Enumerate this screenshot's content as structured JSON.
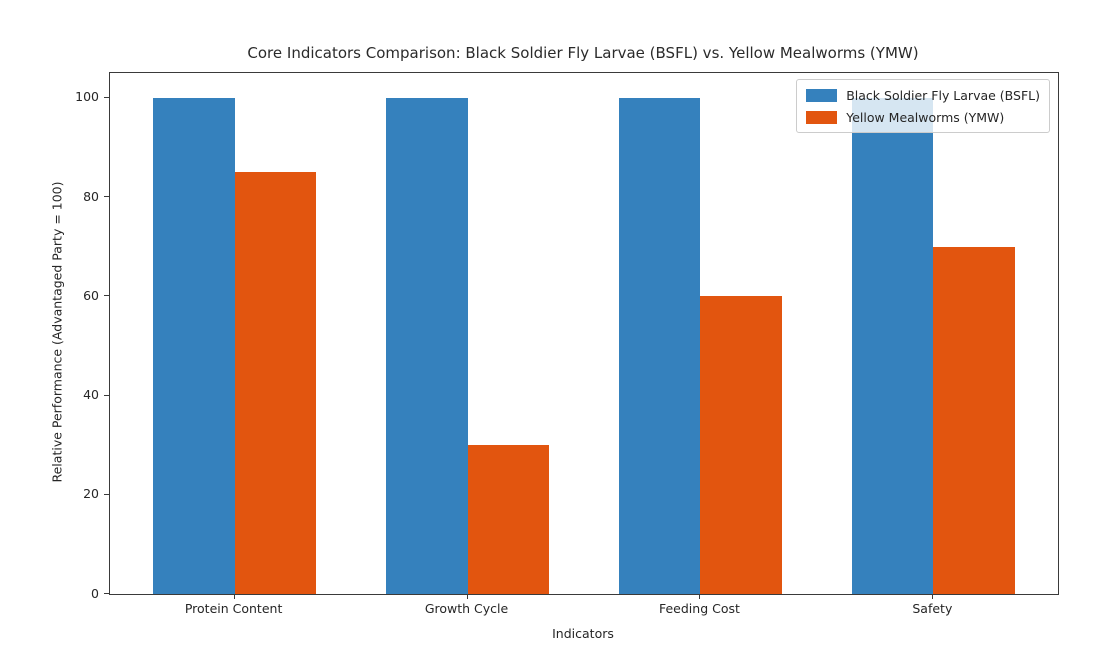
{
  "chart_data": {
    "type": "bar",
    "title": "Core Indicators Comparison: Black Soldier Fly Larvae (BSFL) vs. Yellow Mealworms (YMW)",
    "xlabel": "Indicators",
    "ylabel": "Relative Performance (Advantaged Party = 100)",
    "categories": [
      "Protein Content",
      "Growth Cycle",
      "Feeding Cost",
      "Safety"
    ],
    "series": [
      {
        "name": "Black Soldier Fly Larvae (BSFL)",
        "color": "#3581bd",
        "values": [
          100,
          100,
          100,
          100
        ]
      },
      {
        "name": "Yellow Mealworms (YMW)",
        "color": "#e2550f",
        "values": [
          85,
          30,
          60,
          70
        ]
      }
    ],
    "ylim": [
      0,
      105
    ],
    "yticks": [
      0,
      20,
      40,
      60,
      80,
      100
    ],
    "grid": false,
    "legend_position": "upper right",
    "bar_width_ratio": 0.35,
    "colors": {
      "spine": "#3a3a3a",
      "text": "#262626",
      "legend_border": "#cccccc",
      "background": "#ffffff"
    }
  }
}
